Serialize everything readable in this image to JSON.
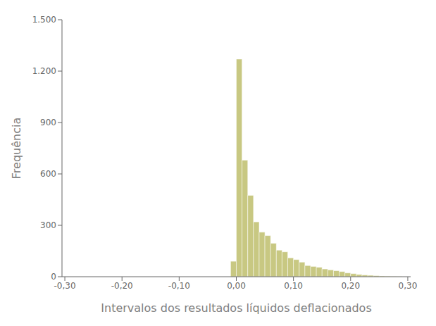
{
  "chart_data": {
    "type": "histogram",
    "xlabel": "Intervalos dos resultados líquidos deflacionados",
    "ylabel": "Frequência",
    "bins": [
      -0.3,
      -0.29,
      -0.28,
      -0.27,
      -0.26,
      -0.25,
      -0.24,
      -0.23,
      -0.22,
      -0.21,
      -0.2,
      -0.19,
      -0.18,
      -0.17,
      -0.16,
      -0.15,
      -0.14,
      -0.13,
      -0.12,
      -0.11,
      -0.1,
      -0.09,
      -0.08,
      -0.07,
      -0.06,
      -0.05,
      -0.04,
      -0.03,
      -0.02,
      -0.01,
      0.0,
      0.01,
      0.02,
      0.03,
      0.04,
      0.05,
      0.06,
      0.07,
      0.08,
      0.09,
      0.1,
      0.11,
      0.12,
      0.13,
      0.14,
      0.15,
      0.16,
      0.17,
      0.18,
      0.19,
      0.2,
      0.21,
      0.22,
      0.23,
      0.24,
      0.25,
      0.26,
      0.27,
      0.28,
      0.29,
      0.3
    ],
    "values": [
      0,
      0,
      0,
      0,
      0,
      0,
      0,
      0,
      0,
      0,
      0,
      0,
      0,
      0,
      0,
      0,
      0,
      0,
      0,
      0,
      0,
      0,
      0,
      0,
      0,
      0,
      0,
      0,
      0,
      90,
      1270,
      680,
      475,
      320,
      260,
      240,
      195,
      155,
      145,
      110,
      100,
      85,
      65,
      60,
      55,
      45,
      40,
      35,
      30,
      22,
      18,
      13,
      10,
      8,
      6,
      4,
      3,
      2,
      1,
      0
    ],
    "color": "#c8c882",
    "xlim": [
      -0.305,
      0.305
    ],
    "ylim": [
      0,
      1500
    ],
    "xticks": [
      {
        "value": -0.3,
        "label": "-0,30"
      },
      {
        "value": -0.2,
        "label": "-0,20"
      },
      {
        "value": -0.1,
        "label": "-0,10"
      },
      {
        "value": 0.0,
        "label": "0,00"
      },
      {
        "value": 0.1,
        "label": "0,10"
      },
      {
        "value": 0.2,
        "label": "0,20"
      },
      {
        "value": 0.3,
        "label": "0,30"
      }
    ],
    "yticks": [
      0,
      300,
      600,
      900,
      {
        "value": 1200,
        "label": "1.200"
      },
      {
        "value": 1500,
        "label": "1.500"
      }
    ],
    "grid": false
  }
}
